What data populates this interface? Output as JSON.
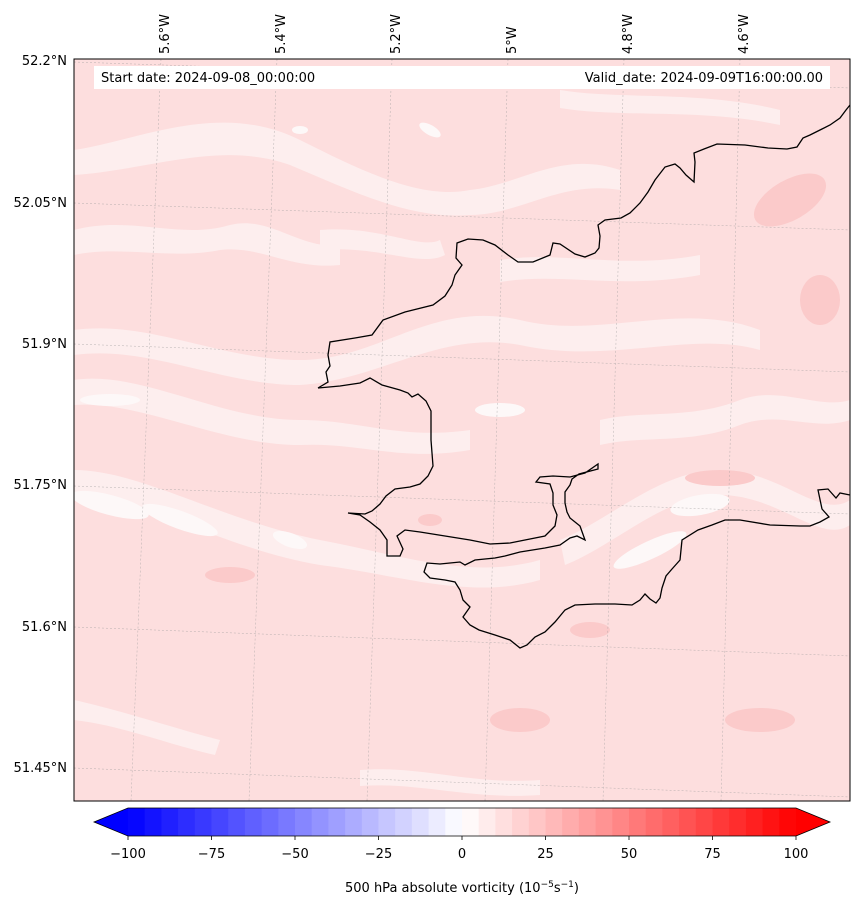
{
  "info_bar": {
    "start_label": "Start date: 2024-09-08_00:00:00",
    "valid_label": "Valid_date: 2024-09-09T16:00:00.00"
  },
  "map": {
    "lon_ticks": [
      "5.6°W",
      "5.4°W",
      "5.2°W",
      "5°W",
      "4.8°W",
      "4.6°W"
    ],
    "lat_ticks": [
      "52.2°N",
      "52.05°N",
      "51.9°N",
      "51.75°N",
      "51.6°N",
      "51.45°N"
    ],
    "field_colors": {
      "base": "#fddede",
      "light": "#fdeeee",
      "white": "#fdf8f8",
      "medium": "#fcd0d0",
      "strong": "#fbc2c2"
    }
  },
  "colorbar": {
    "min": -100,
    "max": 100,
    "tick_values": [
      -100,
      -75,
      -50,
      -25,
      0,
      25,
      50,
      75,
      100
    ],
    "tick_labels": [
      "−100",
      "−75",
      "−50",
      "−25",
      "0",
      "25",
      "50",
      "75",
      "100"
    ],
    "title_prefix": "500 hPa absolute vorticity (10",
    "title_sup1": "−5",
    "title_mid": "s",
    "title_sup2": "−1",
    "title_suffix": ")",
    "neg_color": "#0000ff",
    "zero_color": "#ffffff",
    "pos_color": "#ff0000"
  }
}
